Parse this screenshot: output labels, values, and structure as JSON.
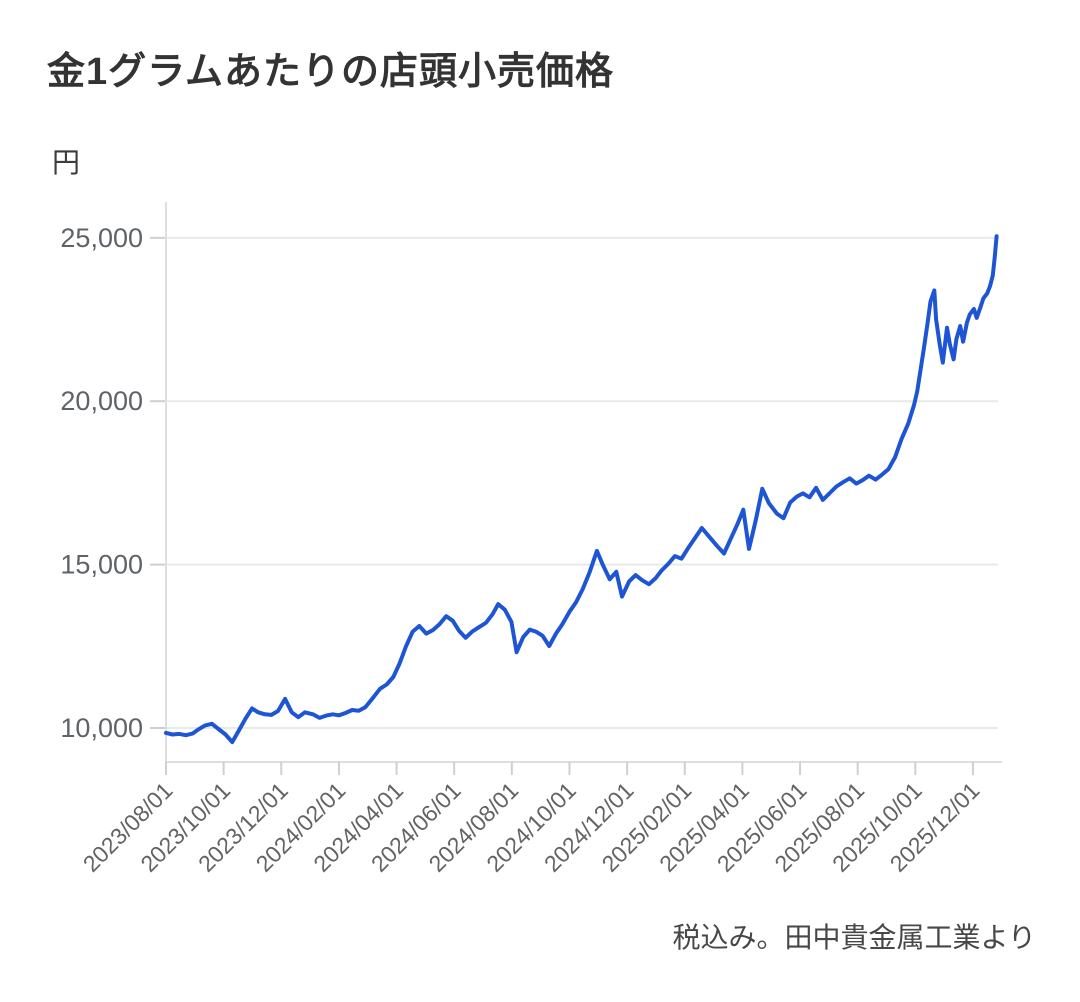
{
  "header": {
    "title": "金1グラムあたりの店頭小売価格"
  },
  "footer": {
    "source_note": "税込み。田中貴金属工業より"
  },
  "chart_data": {
    "type": "line",
    "title": "金1グラムあたりの店頭小売価格",
    "unit_label": "円",
    "source_note": "税込み。田中貴金属工業より",
    "legend": "none",
    "grid": "horizontal-only",
    "line_color": "#1d55d4",
    "y_axis": {
      "unit": "円",
      "ticks": [
        10000,
        15000,
        20000,
        25000
      ],
      "tick_labels": [
        "10,000",
        "15,000",
        "20,000",
        "25,000"
      ],
      "range_shown": [
        8960,
        26100
      ]
    },
    "x_axis": {
      "tick_labels": [
        "2023/08/01",
        "2023/10/01",
        "2023/12/01",
        "2024/02/01",
        "2024/04/01",
        "2024/06/01",
        "2024/08/01",
        "2024/10/01",
        "2024/12/01",
        "2025/02/01",
        "2025/04/01",
        "2025/06/01",
        "2025/08/01",
        "2025/10/01",
        "2025/12/01"
      ],
      "label_rotation_deg": -45
    },
    "series": [
      {
        "name": "金1グラムあたりの店頭小売価格（円・税込）",
        "points": [
          [
            "2023-08-01",
            9850
          ],
          [
            "2023-08-08",
            9800
          ],
          [
            "2023-08-15",
            9820
          ],
          [
            "2023-08-22",
            9780
          ],
          [
            "2023-08-29",
            9830
          ],
          [
            "2023-09-05",
            9960
          ],
          [
            "2023-09-12",
            10080
          ],
          [
            "2023-09-19",
            10130
          ],
          [
            "2023-09-26",
            9970
          ],
          [
            "2023-10-03",
            9800
          ],
          [
            "2023-10-10",
            9570
          ],
          [
            "2023-10-17",
            9920
          ],
          [
            "2023-10-24",
            10280
          ],
          [
            "2023-10-31",
            10600
          ],
          [
            "2023-11-07",
            10480
          ],
          [
            "2023-11-14",
            10420
          ],
          [
            "2023-11-21",
            10400
          ],
          [
            "2023-11-28",
            10520
          ],
          [
            "2023-12-05",
            10890
          ],
          [
            "2023-12-12",
            10480
          ],
          [
            "2023-12-19",
            10330
          ],
          [
            "2023-12-26",
            10480
          ],
          [
            "2024-01-04",
            10420
          ],
          [
            "2024-01-11",
            10310
          ],
          [
            "2024-01-18",
            10380
          ],
          [
            "2024-01-25",
            10420
          ],
          [
            "2024-02-01",
            10390
          ],
          [
            "2024-02-08",
            10460
          ],
          [
            "2024-02-15",
            10550
          ],
          [
            "2024-02-22",
            10530
          ],
          [
            "2024-02-29",
            10640
          ],
          [
            "2024-03-07",
            10940
          ],
          [
            "2024-03-14",
            11200
          ],
          [
            "2024-03-21",
            11330
          ],
          [
            "2024-03-28",
            11560
          ],
          [
            "2024-04-04",
            11960
          ],
          [
            "2024-04-11",
            12500
          ],
          [
            "2024-04-18",
            12950
          ],
          [
            "2024-04-25",
            13120
          ],
          [
            "2024-05-02",
            12890
          ],
          [
            "2024-05-09",
            13000
          ],
          [
            "2024-05-16",
            13180
          ],
          [
            "2024-05-23",
            13420
          ],
          [
            "2024-05-30",
            13280
          ],
          [
            "2024-06-06",
            12980
          ],
          [
            "2024-06-13",
            12760
          ],
          [
            "2024-06-20",
            12950
          ],
          [
            "2024-06-27",
            13080
          ],
          [
            "2024-07-04",
            13220
          ],
          [
            "2024-07-11",
            13480
          ],
          [
            "2024-07-17",
            13790
          ],
          [
            "2024-07-24",
            13620
          ],
          [
            "2024-07-31",
            13250
          ],
          [
            "2024-08-06",
            12320
          ],
          [
            "2024-08-13",
            12780
          ],
          [
            "2024-08-20",
            13010
          ],
          [
            "2024-08-27",
            12940
          ],
          [
            "2024-09-03",
            12820
          ],
          [
            "2024-09-10",
            12510
          ],
          [
            "2024-09-17",
            12880
          ],
          [
            "2024-09-24",
            13180
          ],
          [
            "2024-10-01",
            13560
          ],
          [
            "2024-10-08",
            13850
          ],
          [
            "2024-10-15",
            14250
          ],
          [
            "2024-10-22",
            14750
          ],
          [
            "2024-10-30",
            15420
          ],
          [
            "2024-11-06",
            14980
          ],
          [
            "2024-11-13",
            14550
          ],
          [
            "2024-11-20",
            14780
          ],
          [
            "2024-11-26",
            14020
          ],
          [
            "2024-12-03",
            14480
          ],
          [
            "2024-12-10",
            14680
          ],
          [
            "2024-12-17",
            14520
          ],
          [
            "2024-12-24",
            14400
          ],
          [
            "2024-12-31",
            14580
          ],
          [
            "2025-01-07",
            14820
          ],
          [
            "2025-01-14",
            15020
          ],
          [
            "2025-01-21",
            15260
          ],
          [
            "2025-01-28",
            15180
          ],
          [
            "2025-02-04",
            15480
          ],
          [
            "2025-02-12",
            15820
          ],
          [
            "2025-02-19",
            16120
          ],
          [
            "2025-02-26",
            15880
          ],
          [
            "2025-03-05",
            15560
          ],
          [
            "2025-03-12",
            15340
          ],
          [
            "2025-03-19",
            15780
          ],
          [
            "2025-03-26",
            16220
          ],
          [
            "2025-04-02",
            16680
          ],
          [
            "2025-04-08",
            15480
          ],
          [
            "2025-04-15",
            16350
          ],
          [
            "2025-04-22",
            17320
          ],
          [
            "2025-04-29",
            16880
          ],
          [
            "2025-05-07",
            16560
          ],
          [
            "2025-05-14",
            16420
          ],
          [
            "2025-05-21",
            16900
          ],
          [
            "2025-05-28",
            17080
          ],
          [
            "2025-06-04",
            17180
          ],
          [
            "2025-06-11",
            17060
          ],
          [
            "2025-06-18",
            17350
          ],
          [
            "2025-06-25",
            16980
          ],
          [
            "2025-07-02",
            17190
          ],
          [
            "2025-07-09",
            17390
          ],
          [
            "2025-07-16",
            17520
          ],
          [
            "2025-07-23",
            17640
          ],
          [
            "2025-07-30",
            17480
          ],
          [
            "2025-08-06",
            17580
          ],
          [
            "2025-08-13",
            17720
          ],
          [
            "2025-08-20",
            17600
          ],
          [
            "2025-08-27",
            17760
          ],
          [
            "2025-09-03",
            17920
          ],
          [
            "2025-09-10",
            18280
          ],
          [
            "2025-09-17",
            18850
          ],
          [
            "2025-09-24",
            19320
          ],
          [
            "2025-09-30",
            19880
          ],
          [
            "2025-10-03",
            20300
          ],
          [
            "2025-10-07",
            21050
          ],
          [
            "2025-10-10",
            21600
          ],
          [
            "2025-10-14",
            22400
          ],
          [
            "2025-10-17",
            23050
          ],
          [
            "2025-10-21",
            23390
          ],
          [
            "2025-10-23",
            22500
          ],
          [
            "2025-10-27",
            21700
          ],
          [
            "2025-10-30",
            21180
          ],
          [
            "2025-11-04",
            22250
          ],
          [
            "2025-11-07",
            21750
          ],
          [
            "2025-11-11",
            21280
          ],
          [
            "2025-11-14",
            21900
          ],
          [
            "2025-11-18",
            22300
          ],
          [
            "2025-11-21",
            21820
          ],
          [
            "2025-11-25",
            22400
          ],
          [
            "2025-11-28",
            22650
          ],
          [
            "2025-12-02",
            22820
          ],
          [
            "2025-12-05",
            22550
          ],
          [
            "2025-12-09",
            22880
          ],
          [
            "2025-12-12",
            23150
          ],
          [
            "2025-12-16",
            23300
          ],
          [
            "2025-12-19",
            23520
          ],
          [
            "2025-12-22",
            23850
          ],
          [
            "2025-12-24",
            24400
          ],
          [
            "2025-12-26",
            25050
          ]
        ]
      }
    ]
  }
}
